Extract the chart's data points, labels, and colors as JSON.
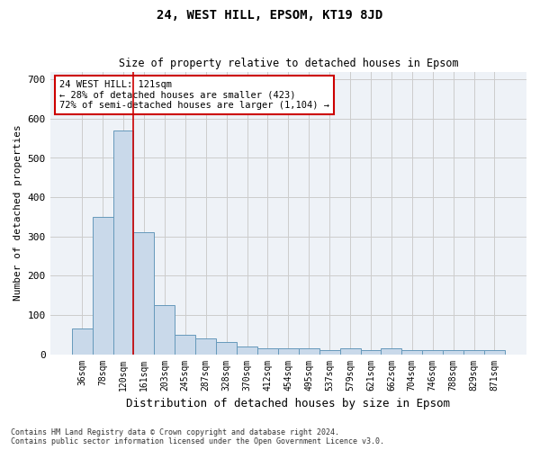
{
  "title1": "24, WEST HILL, EPSOM, KT19 8JD",
  "title2": "Size of property relative to detached houses in Epsom",
  "xlabel": "Distribution of detached houses by size in Epsom",
  "ylabel": "Number of detached properties",
  "categories": [
    "36sqm",
    "78sqm",
    "120sqm",
    "161sqm",
    "203sqm",
    "245sqm",
    "287sqm",
    "328sqm",
    "370sqm",
    "412sqm",
    "454sqm",
    "495sqm",
    "537sqm",
    "579sqm",
    "621sqm",
    "662sqm",
    "704sqm",
    "746sqm",
    "788sqm",
    "829sqm",
    "871sqm"
  ],
  "values": [
    65,
    350,
    570,
    310,
    125,
    50,
    40,
    30,
    20,
    15,
    15,
    15,
    10,
    15,
    10,
    15,
    10,
    10,
    10,
    10,
    10
  ],
  "bar_color": "#c9d9ea",
  "bar_edge_color": "#6699bb",
  "grid_color": "#cccccc",
  "bg_color": "#eef2f7",
  "vline_x_index": 2.5,
  "vline_color": "#cc0000",
  "annotation_text": "24 WEST HILL: 121sqm\n← 28% of detached houses are smaller (423)\n72% of semi-detached houses are larger (1,104) →",
  "annotation_box_color": "#cc0000",
  "footnote1": "Contains HM Land Registry data © Crown copyright and database right 2024.",
  "footnote2": "Contains public sector information licensed under the Open Government Licence v3.0.",
  "ylim": [
    0,
    720
  ],
  "yticks": [
    0,
    100,
    200,
    300,
    400,
    500,
    600,
    700
  ]
}
